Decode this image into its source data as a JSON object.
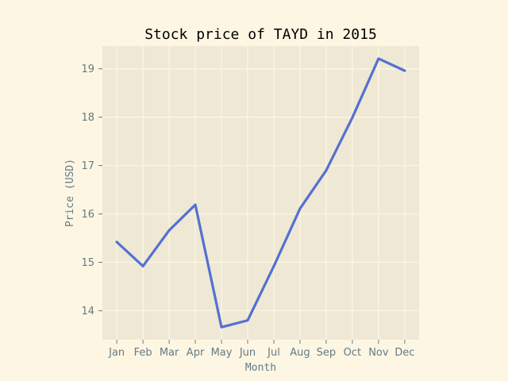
{
  "chart_data": {
    "type": "line",
    "title": "Stock price of TAYD in 2015",
    "xlabel": "Month",
    "ylabel": "Price (USD)",
    "categories": [
      "Jan",
      "Feb",
      "Mar",
      "Apr",
      "May",
      "Jun",
      "Jul",
      "Aug",
      "Sep",
      "Oct",
      "Nov",
      "Dec"
    ],
    "series": [
      {
        "values": [
          15.42,
          14.92,
          15.66,
          16.19,
          13.66,
          13.8,
          14.92,
          16.11,
          16.9,
          17.99,
          19.21,
          18.96
        ]
      }
    ],
    "ylim": [
      13.4,
      19.47
    ],
    "yticks": [
      "14",
      "15",
      "16",
      "17",
      "18",
      "19"
    ],
    "grid": true,
    "legend": "none",
    "colors": {
      "page_background": "#fdf6e3",
      "plot_background": "#eee8d5",
      "grid": "#fdf6e3",
      "line": "#5470d0",
      "text": "#657b83",
      "title": "#000000"
    }
  }
}
